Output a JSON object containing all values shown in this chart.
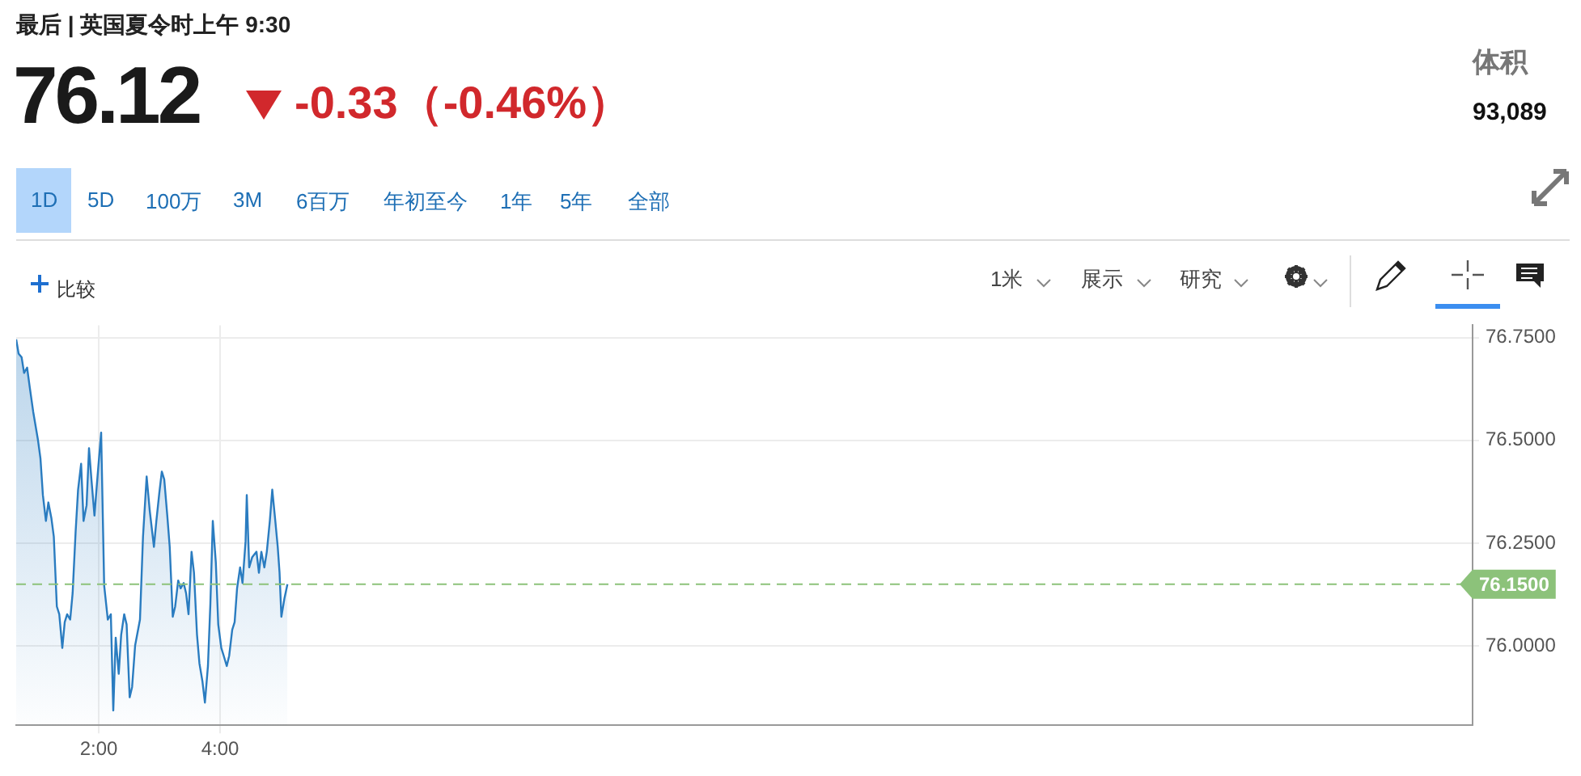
{
  "chart_data": {
    "type": "area",
    "annotations": [
      "最后 | 英国夏令时上午 9:30",
      "76.12",
      "-0.33（-0.46%）",
      "体积",
      "93,089",
      "1D",
      "5D",
      "100万",
      "3M",
      "6百万",
      "年初至今",
      "1年",
      "5年",
      "全部",
      "比较",
      "1米",
      "展示",
      "研究"
    ],
    "x": [
      0.64,
      0.68,
      0.73,
      0.77,
      0.82,
      0.86,
      0.92,
      1.0,
      1.04,
      1.08,
      1.13,
      1.17,
      1.22,
      1.26,
      1.31,
      1.35,
      1.4,
      1.44,
      1.48,
      1.53,
      1.57,
      1.62,
      1.66,
      1.71,
      1.75,
      1.8,
      1.84,
      1.88,
      1.93,
      1.97,
      2.04,
      2.09,
      2.15,
      2.2,
      2.24,
      2.28,
      2.33,
      2.37,
      2.42,
      2.46,
      2.51,
      2.55,
      2.6,
      2.68,
      2.73,
      2.79,
      2.84,
      2.91,
      2.95,
      3.0,
      3.04,
      3.08,
      3.13,
      3.17,
      3.22,
      3.26,
      3.31,
      3.35,
      3.4,
      3.44,
      3.48,
      3.53,
      3.57,
      3.62,
      3.66,
      3.71,
      3.75,
      3.8,
      3.84,
      3.88,
      3.93,
      3.97,
      4.02,
      4.06,
      4.11,
      4.15,
      4.2,
      4.24,
      4.28,
      4.33,
      4.37,
      4.42,
      4.44,
      4.48,
      4.53,
      4.6,
      4.64,
      4.68,
      4.73,
      4.77,
      4.82,
      4.86,
      4.91,
      4.95,
      4.98,
      5.01,
      5.06,
      5.11
    ],
    "series": [
      {
        "color": "#2a7cc0",
        "values": [
          76.746,
          76.711,
          76.702,
          76.664,
          76.677,
          76.633,
          76.57,
          76.5,
          76.456,
          76.367,
          76.304,
          76.349,
          76.311,
          76.266,
          76.096,
          76.077,
          75.995,
          76.058,
          76.077,
          76.064,
          76.128,
          76.279,
          76.38,
          76.443,
          76.304,
          76.342,
          76.481,
          76.405,
          76.317,
          76.393,
          76.519,
          76.147,
          76.064,
          76.077,
          75.843,
          76.02,
          75.932,
          76.027,
          76.077,
          76.052,
          75.875,
          75.9,
          76.001,
          76.064,
          76.266,
          76.412,
          76.33,
          76.241,
          76.304,
          76.374,
          76.424,
          76.405,
          76.317,
          76.241,
          76.071,
          76.096,
          76.159,
          76.14,
          76.153,
          76.128,
          76.077,
          76.229,
          76.178,
          76.027,
          75.957,
          75.913,
          75.862,
          75.951,
          76.102,
          76.304,
          76.203,
          76.052,
          75.995,
          75.976,
          75.951,
          75.976,
          76.039,
          76.058,
          76.14,
          76.191,
          76.153,
          76.254,
          76.367,
          76.191,
          76.216,
          76.229,
          76.178,
          76.229,
          76.191,
          76.229,
          76.304,
          76.38,
          76.304,
          76.241,
          76.178,
          76.071,
          76.115,
          76.15
        ]
      }
    ],
    "xlim": [
      0.64,
      24.64
    ],
    "xticks": [
      {
        "value": 2,
        "label": "2:00"
      },
      {
        "value": 4,
        "label": "4:00"
      }
    ],
    "ylim": [
      75.807,
      76.78
    ],
    "yticks": [
      {
        "value": 76,
        "label": "76.0000"
      },
      {
        "value": 76.25,
        "label": "76.2500"
      },
      {
        "value": 76.5,
        "label": "76.5000"
      },
      {
        "value": 76.75,
        "label": "76.7500"
      }
    ],
    "ref_lines": [
      {
        "axis": "y",
        "value": 76.15,
        "label": "76.1500",
        "color": "#8cc27a",
        "line_style": "dashed"
      }
    ],
    "grid": true,
    "legend": false,
    "marker": "none",
    "line_style": "solid"
  }
}
